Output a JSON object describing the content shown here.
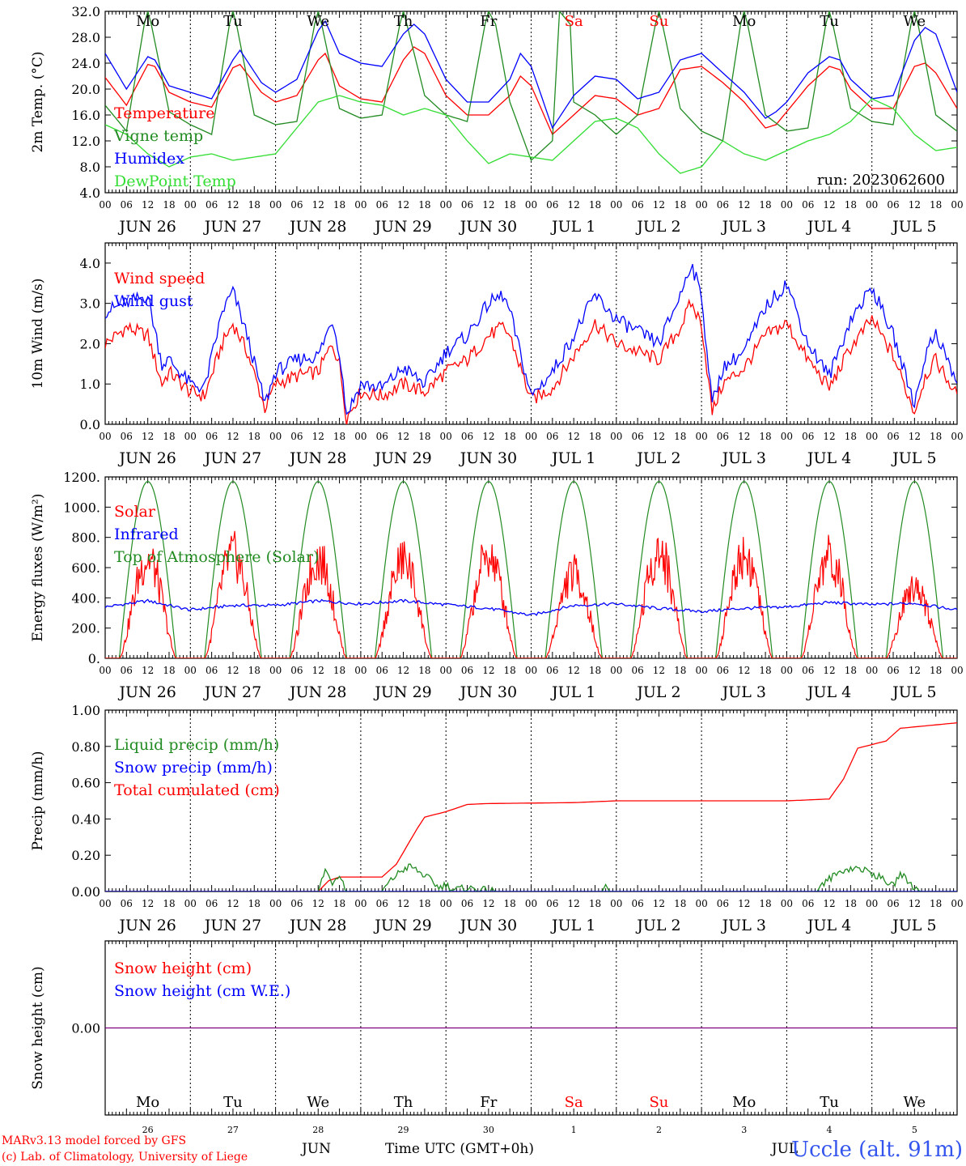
{
  "meta": {
    "run_label": "run: 2023062600",
    "footer_left_1": "MARv3.13 model forced by GFS",
    "footer_left_2": "(c) Lab. of Climatology, University of Liege",
    "footer_station": "Uccle (alt. 91m)",
    "footer_time_label": "Time UTC (GMT+0h)",
    "footer_month_1": "JUN",
    "footer_month_2": "JUL"
  },
  "days": [
    {
      "label": "JUN 26",
      "dow": "Mo",
      "weekend": false,
      "num": "26"
    },
    {
      "label": "JUN 27",
      "dow": "Tu",
      "weekend": false,
      "num": "27"
    },
    {
      "label": "JUN 28",
      "dow": "We",
      "weekend": false,
      "num": "28"
    },
    {
      "label": "JUN 29",
      "dow": "Th",
      "weekend": false,
      "num": "29"
    },
    {
      "label": "JUN 30",
      "dow": "Fr",
      "weekend": false,
      "num": "30"
    },
    {
      "label": "JUL  1",
      "dow": "Sa",
      "weekend": true,
      "num": "1"
    },
    {
      "label": "JUL  2",
      "dow": "Su",
      "weekend": true,
      "num": "2"
    },
    {
      "label": "JUL  3",
      "dow": "Mo",
      "weekend": false,
      "num": "3"
    },
    {
      "label": "JUL  4",
      "dow": "Tu",
      "weekend": false,
      "num": "4"
    },
    {
      "label": "JUL  5",
      "dow": "We",
      "weekend": false,
      "num": "5"
    }
  ],
  "hour_ticks": [
    "00",
    "06",
    "12",
    "18"
  ],
  "end_tick": "00",
  "colors": {
    "red": "#ff0000",
    "green": "#228b22",
    "blue": "#0000ff",
    "lightgreen": "#33dd33",
    "purple": "#800080",
    "weekend": "#ff0000"
  },
  "chart_data": [
    {
      "id": "temp",
      "type": "line",
      "ylabel": "2m Temp. (°C)",
      "ylim": [
        4,
        32
      ],
      "yticks": [
        "4.0",
        "8.0",
        "12.0",
        "16.0",
        "20.0",
        "24.0",
        "28.0",
        "32.0"
      ],
      "x_unit": "hours since JUN 26 00 UTC",
      "show_dow": true,
      "legend": [
        {
          "name": "Temperature",
          "color": "#ff0000"
        },
        {
          "name": "Vigne temp",
          "color": "#228b22"
        },
        {
          "name": "Humidex",
          "color": "#0000ff"
        },
        {
          "name": "DewPoint Temp",
          "color": "#33dd33"
        }
      ],
      "series": [
        {
          "name": "Temperature",
          "color": "#ff0000",
          "x": [
            0,
            6,
            12,
            14,
            18,
            24,
            30,
            36,
            38,
            44,
            48,
            54,
            60,
            62,
            66,
            72,
            78,
            84,
            87,
            90,
            96,
            102,
            108,
            114,
            117,
            120,
            126,
            132,
            138,
            144,
            150,
            156,
            162,
            168,
            174,
            180,
            186,
            189,
            192,
            198,
            204,
            207,
            210,
            216,
            222,
            228,
            231,
            234,
            240
          ],
          "values": [
            21.8,
            17.5,
            23.8,
            23.5,
            19.5,
            18.0,
            17.2,
            23.3,
            23.8,
            19.5,
            18.0,
            19.0,
            24.5,
            25.5,
            20.5,
            18.5,
            18.0,
            24.5,
            26.5,
            25.5,
            19.0,
            16.0,
            16.0,
            19.0,
            22.0,
            20.5,
            13.0,
            16.0,
            19.0,
            18.5,
            16.0,
            17.0,
            23.0,
            23.5,
            21.0,
            18.0,
            14.0,
            14.5,
            16.5,
            20.5,
            23.5,
            23.0,
            20.0,
            17.0,
            17.0,
            23.5,
            24.0,
            22.5,
            17.0
          ]
        },
        {
          "name": "Vigne temp",
          "color": "#228b22",
          "x": [
            0,
            6,
            11,
            12,
            13,
            18,
            24,
            30,
            35,
            36,
            37,
            42,
            48,
            54,
            59,
            60,
            61,
            66,
            72,
            78,
            83,
            84,
            85,
            90,
            96,
            102,
            107,
            108,
            110,
            114,
            120,
            126,
            128,
            131,
            132,
            138,
            144,
            150,
            155,
            156,
            157,
            162,
            168,
            174,
            179,
            180,
            181,
            186,
            192,
            198,
            203,
            204,
            205,
            210,
            216,
            222,
            227,
            228,
            229,
            234,
            240
          ],
          "values": [
            17.5,
            13.5,
            30.0,
            32.0,
            30.0,
            16.5,
            14.5,
            13.0,
            30.0,
            32.0,
            30.0,
            16.0,
            14.5,
            15.0,
            30.0,
            32.0,
            30.0,
            17.0,
            15.5,
            16.0,
            30.0,
            32.0,
            30.0,
            19.0,
            16.0,
            15.0,
            30.0,
            32.0,
            30.0,
            18.0,
            9.0,
            12.0,
            32.0,
            30.0,
            18.0,
            16.0,
            13.0,
            16.0,
            30.0,
            32.0,
            30.0,
            17.0,
            13.5,
            12.0,
            30.0,
            32.0,
            30.0,
            16.0,
            13.5,
            14.0,
            30.0,
            32.0,
            30.0,
            17.0,
            15.0,
            14.5,
            30.0,
            32.0,
            30.0,
            16.0,
            13.5
          ]
        },
        {
          "name": "Humidex",
          "color": "#0000ff",
          "x": [
            0,
            6,
            12,
            14,
            18,
            24,
            30,
            36,
            38,
            44,
            48,
            54,
            60,
            62,
            66,
            72,
            78,
            84,
            87,
            90,
            96,
            102,
            108,
            114,
            117,
            120,
            126,
            132,
            138,
            144,
            150,
            156,
            162,
            168,
            174,
            180,
            186,
            189,
            192,
            198,
            204,
            207,
            210,
            216,
            222,
            228,
            231,
            234,
            240
          ],
          "values": [
            25.5,
            20.0,
            25.0,
            24.5,
            20.5,
            19.5,
            18.5,
            24.5,
            26.0,
            21.0,
            19.5,
            21.5,
            29.0,
            30.5,
            25.5,
            24.0,
            23.5,
            28.5,
            30.0,
            28.5,
            21.5,
            18.0,
            18.0,
            21.5,
            25.5,
            23.5,
            14.0,
            19.0,
            22.0,
            21.5,
            18.5,
            19.5,
            24.5,
            25.5,
            22.5,
            19.5,
            15.5,
            16.5,
            18.0,
            22.5,
            25.0,
            24.5,
            21.5,
            18.5,
            19.0,
            27.5,
            29.5,
            28.5,
            19.5
          ]
        },
        {
          "name": "DewPoint Temp",
          "color": "#33dd33",
          "x": [
            0,
            6,
            12,
            18,
            24,
            30,
            36,
            42,
            48,
            54,
            60,
            66,
            72,
            78,
            84,
            90,
            96,
            102,
            108,
            114,
            120,
            126,
            132,
            138,
            144,
            150,
            156,
            162,
            168,
            174,
            180,
            186,
            192,
            198,
            204,
            210,
            216,
            222,
            228,
            234,
            240
          ],
          "values": [
            14.5,
            13.0,
            10.0,
            8.0,
            9.5,
            10.0,
            9.0,
            9.5,
            10.0,
            14.0,
            18.0,
            19.0,
            18.0,
            17.5,
            16.0,
            17.0,
            16.0,
            12.0,
            8.5,
            10.0,
            9.5,
            9.0,
            12.0,
            15.0,
            15.5,
            14.0,
            10.0,
            7.0,
            8.0,
            12.0,
            10.0,
            9.0,
            10.5,
            12.0,
            13.0,
            15.0,
            18.5,
            17.0,
            13.0,
            10.5,
            11.0
          ]
        }
      ]
    },
    {
      "id": "wind",
      "type": "line",
      "ylabel": "10m Wind (m/s)",
      "ylim": [
        0,
        4.5
      ],
      "yticks": [
        "0.0",
        "1.0",
        "2.0",
        "3.0",
        "4.0"
      ],
      "x_unit": "hours since JUN 26 00 UTC",
      "show_dow": false,
      "legend": [
        {
          "name": "Wind speed",
          "color": "#ff0000"
        },
        {
          "name": "Wind gust",
          "color": "#0000ff"
        }
      ],
      "series": [
        {
          "name": "Wind speed",
          "color": "#ff0000",
          "x": [
            0,
            6,
            12,
            16,
            18,
            24,
            28,
            33,
            36,
            40,
            45,
            48,
            54,
            60,
            64,
            66,
            68,
            72,
            78,
            84,
            90,
            96,
            102,
            108,
            112,
            114,
            120,
            126,
            132,
            138,
            144,
            150,
            156,
            162,
            165,
            168,
            171,
            174,
            180,
            186,
            192,
            198,
            204,
            210,
            216,
            222,
            228,
            231,
            234,
            240
          ],
          "values": [
            2.0,
            2.4,
            2.2,
            1.0,
            1.3,
            0.8,
            0.7,
            2.0,
            2.5,
            1.8,
            0.4,
            1.0,
            1.2,
            1.3,
            2.0,
            1.5,
            0.15,
            0.8,
            0.7,
            1.0,
            0.8,
            1.3,
            1.6,
            2.2,
            2.4,
            2.2,
            0.6,
            0.9,
            1.7,
            2.5,
            2.0,
            1.8,
            1.6,
            2.4,
            3.0,
            2.5,
            0.3,
            1.0,
            1.4,
            2.2,
            2.5,
            1.6,
            0.9,
            1.9,
            2.6,
            1.7,
            0.3,
            1.2,
            1.6,
            0.7
          ]
        },
        {
          "name": "Wind gust",
          "color": "#0000ff",
          "x": [
            0,
            6,
            12,
            16,
            18,
            24,
            28,
            33,
            36,
            40,
            45,
            48,
            54,
            60,
            64,
            66,
            68,
            72,
            78,
            84,
            90,
            96,
            102,
            108,
            112,
            114,
            120,
            126,
            132,
            138,
            144,
            150,
            156,
            162,
            165,
            168,
            171,
            174,
            180,
            186,
            192,
            198,
            204,
            210,
            216,
            222,
            228,
            231,
            234,
            240
          ],
          "values": [
            2.8,
            3.0,
            3.2,
            1.5,
            1.6,
            1.0,
            0.9,
            2.8,
            3.3,
            2.2,
            0.5,
            1.3,
            1.6,
            1.7,
            2.6,
            1.8,
            0.25,
            1.0,
            0.9,
            1.4,
            1.0,
            1.8,
            2.2,
            3.0,
            3.2,
            2.8,
            0.7,
            1.3,
            2.2,
            3.2,
            2.6,
            2.3,
            2.0,
            3.2,
            4.0,
            3.2,
            0.5,
            1.4,
            1.8,
            2.9,
            3.5,
            2.0,
            1.2,
            2.6,
            3.4,
            2.2,
            0.5,
            1.7,
            2.3,
            1.0
          ]
        }
      ]
    },
    {
      "id": "energy",
      "type": "line",
      "ylabel": "Energy fluxes (W/m²)",
      "ylim": [
        0,
        1200
      ],
      "yticks": [
        "0.",
        "200.",
        "400.",
        "600.",
        "800.",
        "1000.",
        "1200."
      ],
      "x_unit": "hours since JUN 26 00 UTC",
      "show_dow": false,
      "legend": [
        {
          "name": "Solar",
          "color": "#ff0000"
        },
        {
          "name": "Infrared",
          "color": "#0000ff"
        },
        {
          "name": "Top of Atmosphere (Solar)",
          "color": "#228b22"
        }
      ],
      "solar_daily_peaks": [
        820,
        850,
        820,
        810,
        850,
        700,
        870,
        860,
        840,
        610
      ],
      "toa_daily_peak": 1170,
      "sunrise_hour": 4,
      "sunset_hour": 20,
      "series": [
        {
          "name": "Infrared",
          "color": "#0000ff",
          "x": [
            0,
            12,
            24,
            36,
            48,
            60,
            72,
            84,
            96,
            108,
            120,
            132,
            144,
            156,
            168,
            180,
            192,
            204,
            216,
            228,
            240
          ],
          "values": [
            340,
            380,
            320,
            350,
            350,
            380,
            360,
            380,
            355,
            330,
            285,
            350,
            360,
            330,
            310,
            330,
            340,
            370,
            355,
            365,
            320
          ]
        }
      ]
    },
    {
      "id": "precip",
      "type": "line",
      "ylabel": "Precip (mm/h)",
      "ylim": [
        0,
        1.0
      ],
      "yticks": [
        "0.00",
        "0.20",
        "0.40",
        "0.60",
        "0.80",
        "1.00"
      ],
      "x_unit": "hours since JUN 26 00 UTC",
      "show_dow": false,
      "legend": [
        {
          "name": "Liquid precip (mm/h)",
          "color": "#228b22"
        },
        {
          "name": "Snow precip (mm/h)",
          "color": "#0000ff"
        },
        {
          "name": "Total cumulated (cm)",
          "color": "#ff0000"
        }
      ],
      "series": [
        {
          "name": "Total cumulated (cm)",
          "color": "#ff0000",
          "x": [
            0,
            60,
            63,
            66,
            78,
            82,
            88,
            90,
            96,
            102,
            108,
            132,
            144,
            168,
            192,
            204,
            208,
            212,
            220,
            224,
            240
          ],
          "values": [
            0,
            0,
            0.06,
            0.08,
            0.08,
            0.15,
            0.35,
            0.41,
            0.44,
            0.48,
            0.485,
            0.49,
            0.5,
            0.5,
            0.5,
            0.51,
            0.62,
            0.79,
            0.83,
            0.9,
            0.93
          ]
        },
        {
          "name": "Liquid precip (mm/h)",
          "color": "#228b22",
          "x": [
            0,
            60,
            62,
            64,
            66,
            68,
            78,
            80,
            83,
            86,
            89,
            92,
            94,
            96,
            98,
            102,
            110,
            140,
            141,
            142,
            200,
            204,
            208,
            212,
            215,
            218,
            222,
            224,
            226,
            228,
            230,
            232,
            240
          ],
          "values": [
            0,
            0,
            0.12,
            0.05,
            0.1,
            0,
            0,
            0.05,
            0.11,
            0.14,
            0.1,
            0.06,
            0.02,
            0.04,
            0.01,
            0.02,
            0,
            0,
            0.05,
            0,
            0,
            0.07,
            0.12,
            0.13,
            0.11,
            0.08,
            0.03,
            0.1,
            0.06,
            0.02,
            0,
            0,
            0
          ]
        },
        {
          "name": "Snow precip (mm/h)",
          "color": "#0000ff",
          "x": [
            0,
            240
          ],
          "values": [
            0,
            0
          ]
        }
      ]
    },
    {
      "id": "snow",
      "type": "line",
      "ylabel": "Snow height (cm)",
      "ylim": [
        -1,
        1
      ],
      "yticks": [
        "0.00"
      ],
      "x_unit": "hours since JUN 26 00 UTC",
      "show_dow": true,
      "legend": [
        {
          "name": "Snow height (cm)",
          "color": "#ff0000"
        },
        {
          "name": "Snow height (cm W.E.)",
          "color": "#0000ff"
        }
      ],
      "series": [
        {
          "name": "Snow height (cm)",
          "color": "#800080",
          "x": [
            0,
            240
          ],
          "values": [
            0,
            0
          ]
        }
      ]
    }
  ]
}
